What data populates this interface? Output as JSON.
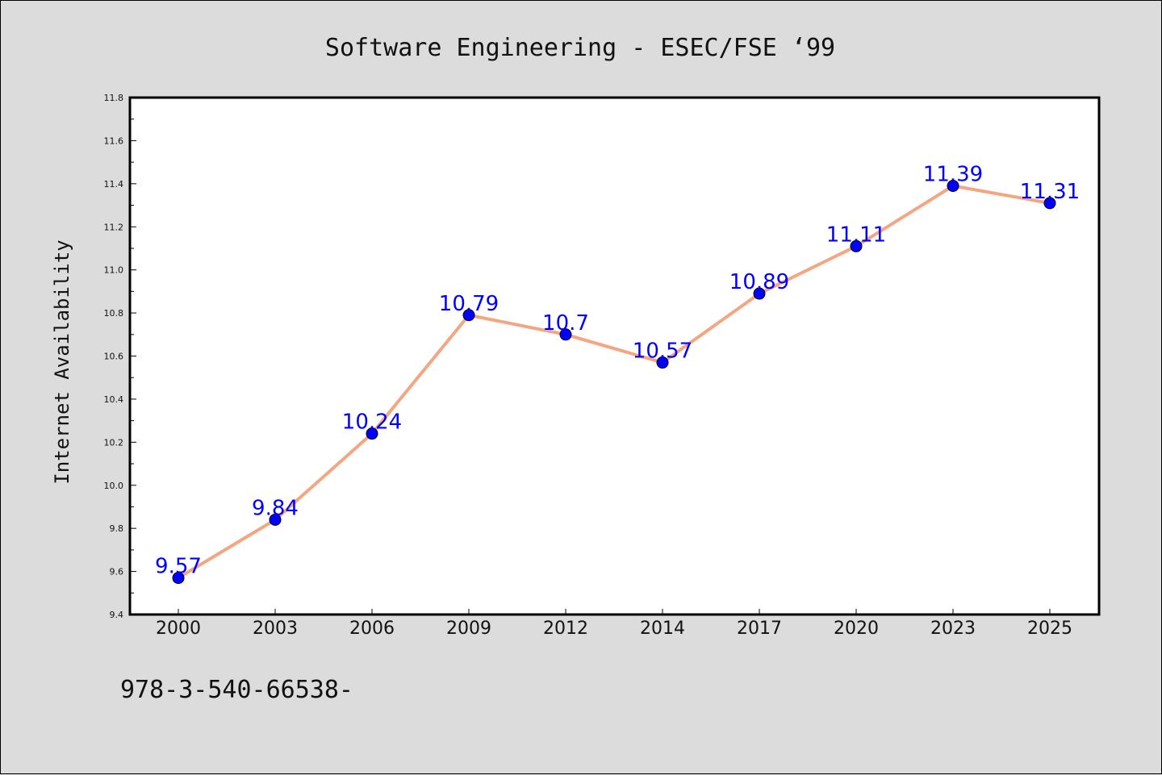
{
  "chart_data": {
    "type": "line",
    "title": "Software Engineering - ESEC/FSE  ‘99",
    "xlabel": "",
    "ylabel": "Internet Availability",
    "categories": [
      "2000",
      "2003",
      "2006",
      "2009",
      "2012",
      "2014",
      "2017",
      "2020",
      "2023",
      "2025"
    ],
    "series": [
      {
        "values": [
          9.57,
          9.84,
          10.24,
          10.79,
          10.7,
          10.57,
          10.89,
          11.11,
          11.39,
          11.31
        ],
        "data_labels": [
          "9.57",
          "9.84",
          "10.24",
          "10.79",
          "10.7",
          "10.57",
          "10.89",
          "11.11",
          "11.39",
          "11.31"
        ],
        "line_color": "#f4a582",
        "marker_color": "#0000ff"
      }
    ],
    "ylim": [
      9.4,
      11.8
    ],
    "yticks": [
      "9.4",
      "9.6",
      "9.8",
      "10.0",
      "10.2",
      "10.4",
      "10.6",
      "10.8",
      "11.0",
      "11.2",
      "11.4",
      "11.6",
      "11.8"
    ],
    "grid": false,
    "legend": "none"
  },
  "footer": {
    "text": "978-3-540-66538-"
  },
  "colors": {
    "background": "#dcdcdc",
    "plot_background": "#ffffff",
    "label_color": "#0000ff"
  }
}
